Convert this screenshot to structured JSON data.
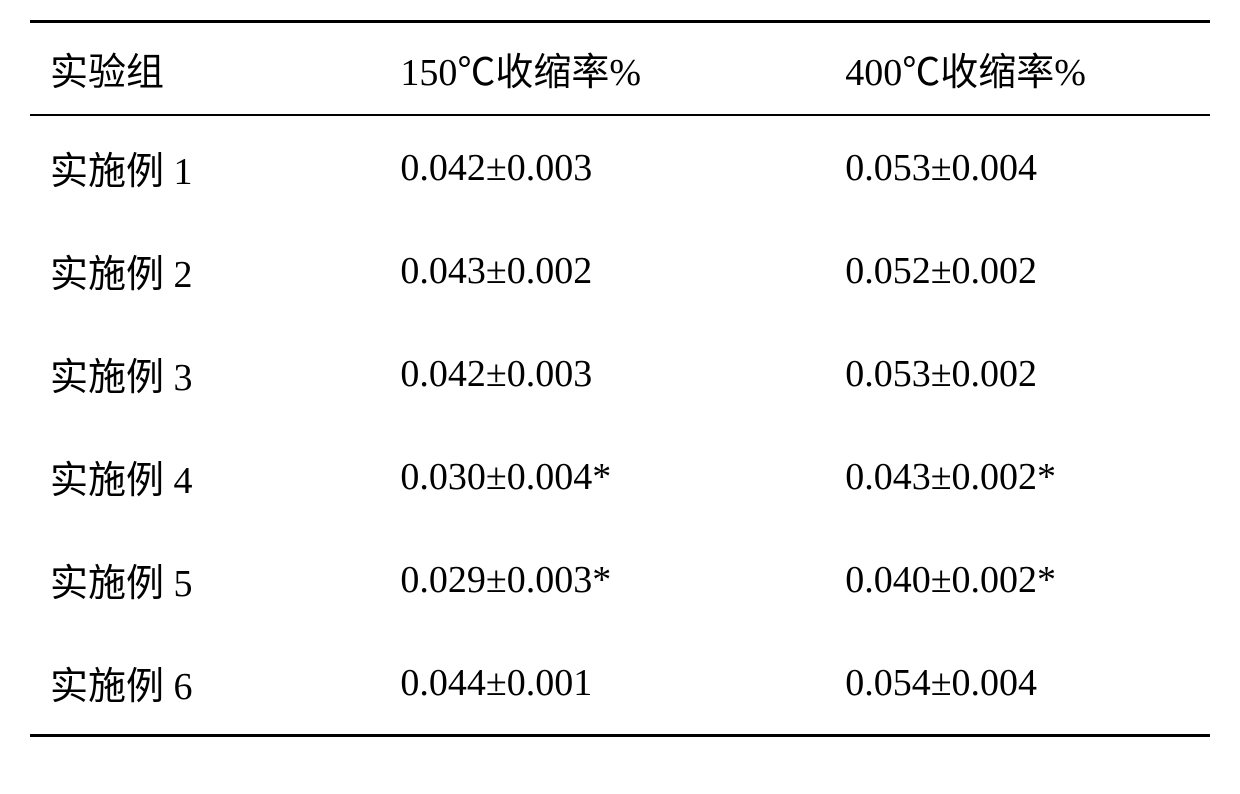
{
  "table": {
    "type": "table",
    "background_color": "#ffffff",
    "text_color": "#000000",
    "border_color": "#000000",
    "font_family": "SimSun",
    "font_size_pt": 28,
    "top_border_width": 3,
    "header_bottom_border_width": 2,
    "bottom_border_width": 3,
    "column_widths_pct": [
      28,
      36,
      36
    ],
    "column_alignments": [
      "left",
      "left",
      "left"
    ],
    "columns": [
      "实验组",
      "150℃收缩率%",
      "400℃收缩率%"
    ],
    "rows": [
      [
        "实施例 1",
        "0.042±0.003",
        "0.053±0.004"
      ],
      [
        "实施例 2",
        "0.043±0.002",
        "0.052±0.002"
      ],
      [
        "实施例 3",
        "0.042±0.003",
        "0.053±0.002"
      ],
      [
        "实施例 4",
        "0.030±0.004*",
        "0.043±0.002*"
      ],
      [
        "实施例 5",
        "0.029±0.003*",
        "0.040±0.002*"
      ],
      [
        "实施例 6",
        "0.044±0.001",
        "0.054±0.004"
      ]
    ]
  }
}
